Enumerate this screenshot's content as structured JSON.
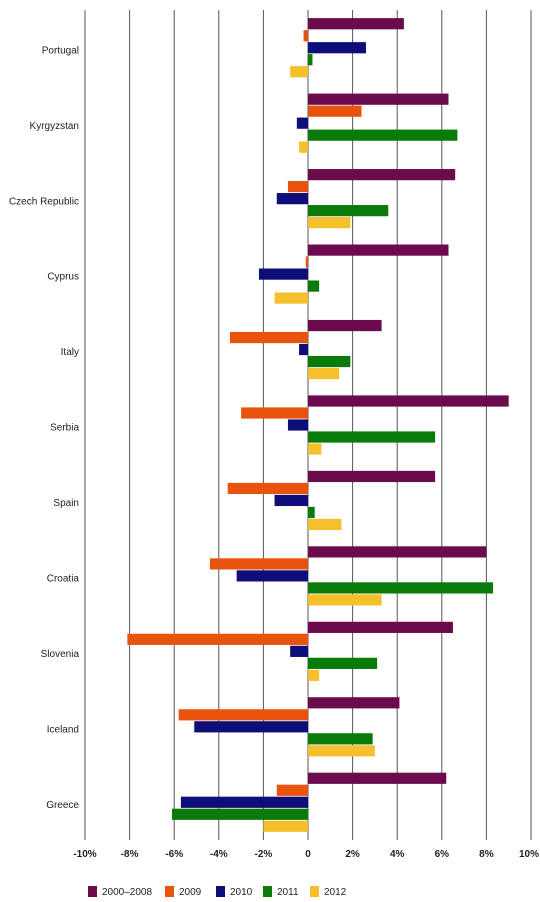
{
  "chart_data": {
    "type": "bar",
    "orientation": "horizontal",
    "categories": [
      "Portugal",
      "Kyrgyzstan",
      "Czech Republic",
      "Cyprus",
      "Italy",
      "Serbia",
      "Spain",
      "Croatia",
      "Slovenia",
      "Iceland",
      "Greece"
    ],
    "series": [
      {
        "name": "2000–2008",
        "color": "#6b0a4d",
        "values": [
          4.3,
          6.3,
          6.6,
          6.3,
          3.3,
          9.0,
          5.7,
          8.0,
          6.5,
          4.1,
          6.2
        ]
      },
      {
        "name": "2009",
        "color": "#e8530e",
        "values": [
          -0.2,
          2.4,
          -0.9,
          -0.1,
          -3.5,
          -3.0,
          -3.6,
          -4.4,
          -8.1,
          -5.8,
          -1.4
        ]
      },
      {
        "name": "2010",
        "color": "#0e0e7a",
        "values": [
          2.6,
          -0.5,
          -1.4,
          -2.2,
          -0.4,
          -0.9,
          -1.5,
          -3.2,
          -0.8,
          -5.1,
          -5.7
        ]
      },
      {
        "name": "2011",
        "color": "#0a7a0a",
        "values": [
          0.2,
          6.7,
          3.6,
          0.5,
          1.9,
          5.7,
          0.3,
          8.3,
          3.1,
          2.9,
          -6.1
        ]
      },
      {
        "name": "2012",
        "color": "#f5c02b",
        "values": [
          -0.8,
          -0.4,
          1.9,
          -1.5,
          1.4,
          0.6,
          1.5,
          3.3,
          0.5,
          3.0,
          -2.0
        ]
      }
    ],
    "xlim": [
      -10,
      10
    ],
    "xticks": [
      -10,
      -8,
      -6,
      -4,
      -2,
      0,
      2,
      4,
      6,
      8,
      10
    ],
    "xtick_labels": [
      "-10%",
      "-8%",
      "-6%",
      "-4%",
      "-2%",
      "0",
      "2%",
      "4%",
      "6%",
      "8%",
      "10%"
    ],
    "grid": "vertical",
    "legend": "bottom"
  }
}
